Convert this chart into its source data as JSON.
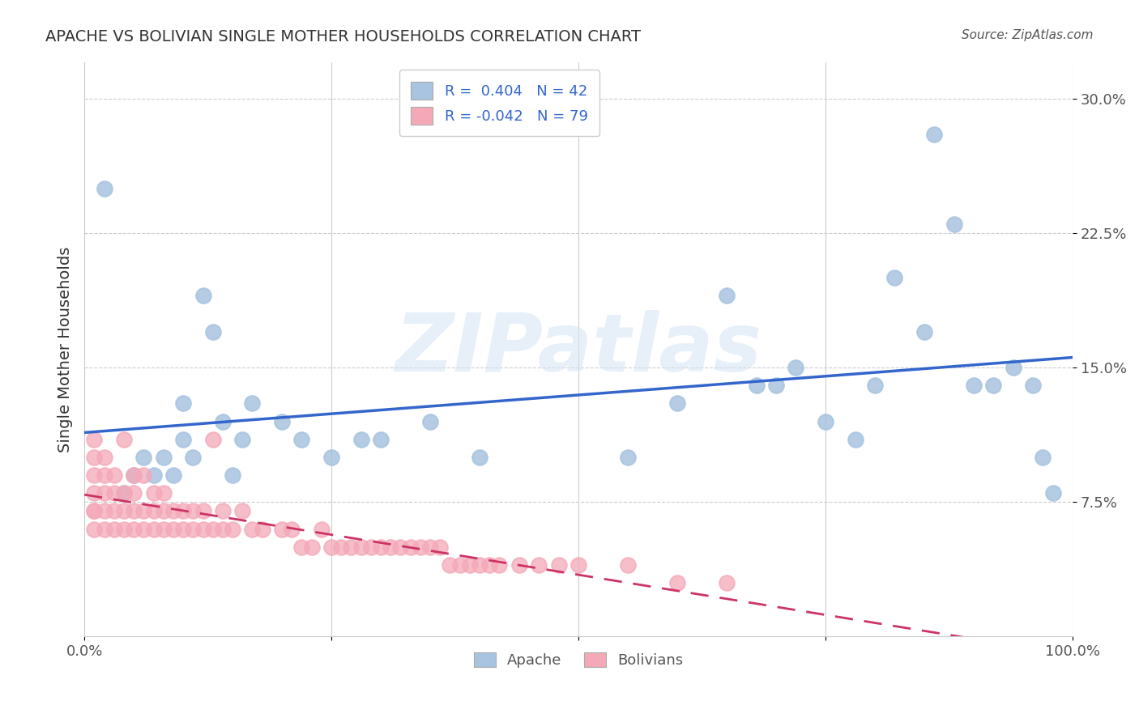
{
  "title": "APACHE VS BOLIVIAN SINGLE MOTHER HOUSEHOLDS CORRELATION CHART",
  "source": "Source: ZipAtlas.com",
  "ylabel": "Single Mother Households",
  "xlim": [
    0,
    1.0
  ],
  "ylim": [
    0,
    0.32
  ],
  "xticks": [
    0.0,
    0.25,
    0.5,
    0.75,
    1.0
  ],
  "xticklabels": [
    "0.0%",
    "",
    "",
    "",
    "100.0%"
  ],
  "yticks": [
    0.075,
    0.15,
    0.225,
    0.3
  ],
  "yticklabels": [
    "7.5%",
    "15.0%",
    "22.5%",
    "30.0%"
  ],
  "legend_line1": "R =  0.404   N = 42",
  "legend_line2": "R = -0.042   N = 79",
  "apache_color": "#a8c4e0",
  "bolivian_color": "#f4a8b8",
  "apache_line_color": "#3366cc",
  "bolivian_line_color": "#cc3366",
  "watermark": "ZIPatlas",
  "apache_scatter_x": [
    0.02,
    0.04,
    0.05,
    0.06,
    0.07,
    0.08,
    0.09,
    0.1,
    0.1,
    0.11,
    0.12,
    0.13,
    0.14,
    0.15,
    0.16,
    0.17,
    0.2,
    0.22,
    0.25,
    0.28,
    0.3,
    0.35,
    0.4,
    0.55,
    0.6,
    0.65,
    0.68,
    0.7,
    0.72,
    0.75,
    0.78,
    0.8,
    0.82,
    0.85,
    0.86,
    0.88,
    0.9,
    0.92,
    0.94,
    0.96,
    0.97,
    0.98
  ],
  "apache_scatter_y": [
    0.25,
    0.08,
    0.09,
    0.1,
    0.09,
    0.1,
    0.09,
    0.11,
    0.13,
    0.1,
    0.19,
    0.17,
    0.12,
    0.09,
    0.11,
    0.13,
    0.12,
    0.11,
    0.1,
    0.11,
    0.11,
    0.12,
    0.1,
    0.1,
    0.13,
    0.19,
    0.14,
    0.14,
    0.15,
    0.12,
    0.11,
    0.14,
    0.2,
    0.17,
    0.28,
    0.23,
    0.14,
    0.14,
    0.15,
    0.14,
    0.1,
    0.08
  ],
  "bolivian_scatter_x": [
    0.01,
    0.01,
    0.01,
    0.01,
    0.01,
    0.01,
    0.01,
    0.02,
    0.02,
    0.02,
    0.02,
    0.02,
    0.03,
    0.03,
    0.03,
    0.03,
    0.04,
    0.04,
    0.04,
    0.04,
    0.05,
    0.05,
    0.05,
    0.05,
    0.06,
    0.06,
    0.06,
    0.07,
    0.07,
    0.07,
    0.08,
    0.08,
    0.08,
    0.09,
    0.09,
    0.1,
    0.1,
    0.11,
    0.11,
    0.12,
    0.12,
    0.13,
    0.13,
    0.14,
    0.14,
    0.15,
    0.16,
    0.17,
    0.18,
    0.2,
    0.21,
    0.22,
    0.23,
    0.24,
    0.25,
    0.26,
    0.27,
    0.28,
    0.29,
    0.3,
    0.31,
    0.32,
    0.33,
    0.34,
    0.35,
    0.36,
    0.37,
    0.38,
    0.39,
    0.4,
    0.41,
    0.42,
    0.44,
    0.46,
    0.48,
    0.5,
    0.55,
    0.6,
    0.65
  ],
  "bolivian_scatter_y": [
    0.06,
    0.07,
    0.07,
    0.08,
    0.09,
    0.1,
    0.11,
    0.06,
    0.07,
    0.08,
    0.09,
    0.1,
    0.06,
    0.07,
    0.08,
    0.09,
    0.06,
    0.07,
    0.08,
    0.11,
    0.06,
    0.07,
    0.08,
    0.09,
    0.06,
    0.07,
    0.09,
    0.06,
    0.07,
    0.08,
    0.06,
    0.07,
    0.08,
    0.06,
    0.07,
    0.06,
    0.07,
    0.06,
    0.07,
    0.06,
    0.07,
    0.06,
    0.11,
    0.06,
    0.07,
    0.06,
    0.07,
    0.06,
    0.06,
    0.06,
    0.06,
    0.05,
    0.05,
    0.06,
    0.05,
    0.05,
    0.05,
    0.05,
    0.05,
    0.05,
    0.05,
    0.05,
    0.05,
    0.05,
    0.05,
    0.05,
    0.04,
    0.04,
    0.04,
    0.04,
    0.04,
    0.04,
    0.04,
    0.04,
    0.04,
    0.04,
    0.04,
    0.03,
    0.03
  ]
}
